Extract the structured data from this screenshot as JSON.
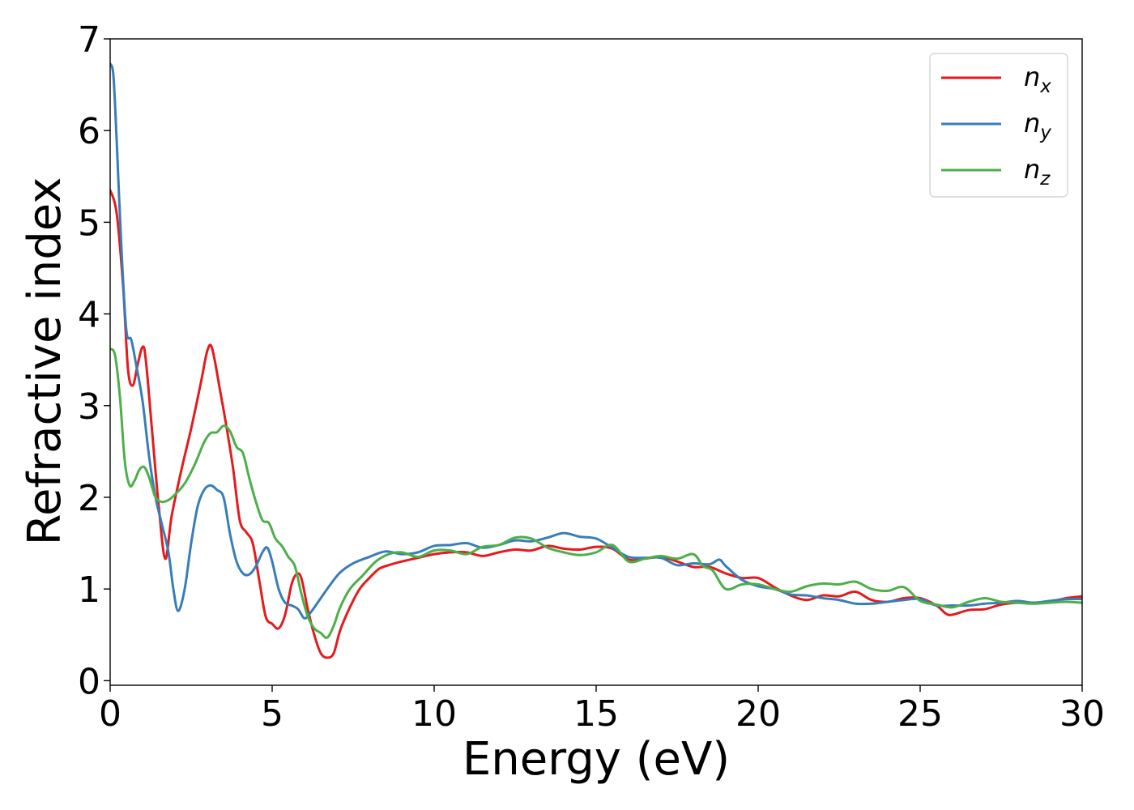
{
  "chart_data": {
    "type": "line",
    "xlabel": "Energy (eV)",
    "ylabel": "Refractive index",
    "xlim": [
      0,
      30
    ],
    "ylim": [
      -0.05,
      7.0
    ],
    "xticks": [
      0,
      5,
      10,
      15,
      20,
      25,
      30
    ],
    "yticks": [
      0,
      1,
      2,
      3,
      4,
      5,
      6,
      7
    ],
    "xtick_labels": [
      "0",
      "5",
      "10",
      "15",
      "20",
      "25",
      "30"
    ],
    "ytick_labels": [
      "0",
      "1",
      "2",
      "3",
      "4",
      "5",
      "6",
      "7"
    ],
    "grid": false,
    "legend_position": "top-right",
    "series": [
      {
        "name": "n_x",
        "label_base": "n",
        "label_sub": "x",
        "color": "#e41a1c",
        "points": [
          [
            0,
            5.35
          ],
          [
            0.2,
            5.1
          ],
          [
            0.4,
            4.3
          ],
          [
            0.55,
            3.4
          ],
          [
            0.7,
            3.22
          ],
          [
            0.85,
            3.45
          ],
          [
            1.0,
            3.64
          ],
          [
            1.1,
            3.5
          ],
          [
            1.3,
            2.7
          ],
          [
            1.5,
            1.9
          ],
          [
            1.7,
            1.33
          ],
          [
            1.9,
            1.8
          ],
          [
            2.2,
            2.3
          ],
          [
            2.5,
            2.75
          ],
          [
            2.8,
            3.25
          ],
          [
            3.0,
            3.6
          ],
          [
            3.15,
            3.62
          ],
          [
            3.4,
            3.15
          ],
          [
            3.6,
            2.75
          ],
          [
            3.8,
            2.3
          ],
          [
            4.0,
            1.75
          ],
          [
            4.2,
            1.62
          ],
          [
            4.4,
            1.5
          ],
          [
            4.6,
            1.1
          ],
          [
            4.8,
            0.7
          ],
          [
            5.0,
            0.62
          ],
          [
            5.2,
            0.57
          ],
          [
            5.4,
            0.72
          ],
          [
            5.6,
            1.05
          ],
          [
            5.75,
            1.16
          ],
          [
            5.9,
            1.12
          ],
          [
            6.1,
            0.78
          ],
          [
            6.3,
            0.5
          ],
          [
            6.5,
            0.3
          ],
          [
            6.7,
            0.25
          ],
          [
            6.9,
            0.3
          ],
          [
            7.1,
            0.55
          ],
          [
            7.4,
            0.8
          ],
          [
            7.7,
            1.0
          ],
          [
            8.0,
            1.12
          ],
          [
            8.3,
            1.22
          ],
          [
            8.6,
            1.26
          ],
          [
            9.0,
            1.3
          ],
          [
            9.5,
            1.34
          ],
          [
            10.0,
            1.38
          ],
          [
            10.5,
            1.4
          ],
          [
            11.0,
            1.4
          ],
          [
            11.5,
            1.36
          ],
          [
            12.0,
            1.4
          ],
          [
            12.5,
            1.43
          ],
          [
            13.0,
            1.42
          ],
          [
            13.5,
            1.47
          ],
          [
            14.0,
            1.44
          ],
          [
            14.5,
            1.43
          ],
          [
            15.0,
            1.46
          ],
          [
            15.5,
            1.44
          ],
          [
            16.0,
            1.32
          ],
          [
            16.5,
            1.33
          ],
          [
            17.0,
            1.35
          ],
          [
            17.5,
            1.3
          ],
          [
            18.0,
            1.24
          ],
          [
            18.5,
            1.24
          ],
          [
            19.0,
            1.17
          ],
          [
            19.5,
            1.12
          ],
          [
            20.0,
            1.12
          ],
          [
            20.5,
            1.02
          ],
          [
            21.0,
            0.93
          ],
          [
            21.5,
            0.88
          ],
          [
            22.0,
            0.93
          ],
          [
            22.5,
            0.92
          ],
          [
            23.0,
            0.97
          ],
          [
            23.5,
            0.88
          ],
          [
            24.0,
            0.86
          ],
          [
            24.5,
            0.9
          ],
          [
            25.0,
            0.9
          ],
          [
            25.5,
            0.82
          ],
          [
            25.8,
            0.73
          ],
          [
            26.0,
            0.72
          ],
          [
            26.5,
            0.77
          ],
          [
            27.0,
            0.78
          ],
          [
            27.5,
            0.83
          ],
          [
            28.0,
            0.85
          ],
          [
            28.5,
            0.85
          ],
          [
            29.0,
            0.86
          ],
          [
            29.5,
            0.9
          ],
          [
            30.0,
            0.92
          ]
        ]
      },
      {
        "name": "n_y",
        "label_base": "n",
        "label_sub": "y",
        "color": "#377eb8",
        "points": [
          [
            0,
            6.73
          ],
          [
            0.1,
            6.6
          ],
          [
            0.2,
            5.9
          ],
          [
            0.35,
            4.7
          ],
          [
            0.5,
            3.82
          ],
          [
            0.65,
            3.72
          ],
          [
            0.8,
            3.45
          ],
          [
            1.0,
            3.05
          ],
          [
            1.2,
            2.45
          ],
          [
            1.4,
            2.0
          ],
          [
            1.6,
            1.7
          ],
          [
            1.8,
            1.4
          ],
          [
            1.95,
            1.0
          ],
          [
            2.1,
            0.76
          ],
          [
            2.3,
            1.0
          ],
          [
            2.5,
            1.5
          ],
          [
            2.7,
            1.9
          ],
          [
            2.9,
            2.08
          ],
          [
            3.1,
            2.13
          ],
          [
            3.3,
            2.08
          ],
          [
            3.5,
            2.0
          ],
          [
            3.7,
            1.6
          ],
          [
            3.9,
            1.3
          ],
          [
            4.1,
            1.17
          ],
          [
            4.3,
            1.16
          ],
          [
            4.5,
            1.25
          ],
          [
            4.7,
            1.4
          ],
          [
            4.85,
            1.45
          ],
          [
            5.0,
            1.3
          ],
          [
            5.2,
            1.0
          ],
          [
            5.4,
            0.85
          ],
          [
            5.6,
            0.82
          ],
          [
            5.8,
            0.78
          ],
          [
            6.0,
            0.68
          ],
          [
            6.2,
            0.75
          ],
          [
            6.5,
            0.9
          ],
          [
            6.8,
            1.05
          ],
          [
            7.1,
            1.18
          ],
          [
            7.5,
            1.28
          ],
          [
            8.0,
            1.35
          ],
          [
            8.5,
            1.41
          ],
          [
            9.0,
            1.38
          ],
          [
            9.5,
            1.4
          ],
          [
            10.0,
            1.47
          ],
          [
            10.5,
            1.48
          ],
          [
            11.0,
            1.5
          ],
          [
            11.5,
            1.45
          ],
          [
            12.0,
            1.48
          ],
          [
            12.5,
            1.53
          ],
          [
            13.0,
            1.52
          ],
          [
            13.5,
            1.56
          ],
          [
            14.0,
            1.61
          ],
          [
            14.5,
            1.57
          ],
          [
            15.0,
            1.55
          ],
          [
            15.5,
            1.45
          ],
          [
            16.0,
            1.35
          ],
          [
            16.5,
            1.34
          ],
          [
            17.0,
            1.34
          ],
          [
            17.5,
            1.26
          ],
          [
            18.0,
            1.28
          ],
          [
            18.5,
            1.27
          ],
          [
            18.8,
            1.32
          ],
          [
            19.0,
            1.25
          ],
          [
            19.5,
            1.1
          ],
          [
            20.0,
            1.03
          ],
          [
            20.5,
            1.0
          ],
          [
            21.0,
            0.94
          ],
          [
            21.5,
            0.93
          ],
          [
            22.0,
            0.9
          ],
          [
            22.5,
            0.88
          ],
          [
            23.0,
            0.84
          ],
          [
            23.5,
            0.84
          ],
          [
            24.0,
            0.86
          ],
          [
            24.5,
            0.88
          ],
          [
            25.0,
            0.89
          ],
          [
            25.5,
            0.82
          ],
          [
            26.0,
            0.82
          ],
          [
            26.5,
            0.82
          ],
          [
            27.0,
            0.84
          ],
          [
            27.5,
            0.85
          ],
          [
            28.0,
            0.87
          ],
          [
            28.5,
            0.85
          ],
          [
            29.0,
            0.87
          ],
          [
            29.5,
            0.89
          ],
          [
            30.0,
            0.89
          ]
        ]
      },
      {
        "name": "n_z",
        "label_base": "n",
        "label_sub": "z",
        "color": "#4daf4a",
        "points": [
          [
            0,
            3.62
          ],
          [
            0.15,
            3.55
          ],
          [
            0.3,
            3.1
          ],
          [
            0.45,
            2.4
          ],
          [
            0.6,
            2.13
          ],
          [
            0.75,
            2.18
          ],
          [
            0.9,
            2.3
          ],
          [
            1.05,
            2.33
          ],
          [
            1.2,
            2.22
          ],
          [
            1.4,
            2.0
          ],
          [
            1.6,
            1.95
          ],
          [
            1.8,
            1.97
          ],
          [
            2.0,
            2.03
          ],
          [
            2.3,
            2.15
          ],
          [
            2.6,
            2.35
          ],
          [
            2.9,
            2.6
          ],
          [
            3.1,
            2.7
          ],
          [
            3.3,
            2.71
          ],
          [
            3.5,
            2.78
          ],
          [
            3.7,
            2.72
          ],
          [
            3.9,
            2.55
          ],
          [
            4.1,
            2.48
          ],
          [
            4.3,
            2.2
          ],
          [
            4.5,
            1.95
          ],
          [
            4.7,
            1.75
          ],
          [
            4.9,
            1.72
          ],
          [
            5.1,
            1.55
          ],
          [
            5.3,
            1.47
          ],
          [
            5.5,
            1.35
          ],
          [
            5.7,
            1.25
          ],
          [
            5.9,
            0.95
          ],
          [
            6.1,
            0.7
          ],
          [
            6.3,
            0.57
          ],
          [
            6.5,
            0.52
          ],
          [
            6.7,
            0.47
          ],
          [
            6.9,
            0.6
          ],
          [
            7.1,
            0.8
          ],
          [
            7.4,
            1.0
          ],
          [
            7.8,
            1.15
          ],
          [
            8.2,
            1.3
          ],
          [
            8.6,
            1.38
          ],
          [
            9.0,
            1.4
          ],
          [
            9.5,
            1.35
          ],
          [
            10.0,
            1.42
          ],
          [
            10.5,
            1.42
          ],
          [
            11.0,
            1.38
          ],
          [
            11.5,
            1.46
          ],
          [
            12.0,
            1.48
          ],
          [
            12.5,
            1.56
          ],
          [
            13.0,
            1.55
          ],
          [
            13.5,
            1.45
          ],
          [
            14.0,
            1.4
          ],
          [
            14.5,
            1.37
          ],
          [
            15.0,
            1.4
          ],
          [
            15.5,
            1.48
          ],
          [
            16.0,
            1.3
          ],
          [
            16.5,
            1.33
          ],
          [
            17.0,
            1.36
          ],
          [
            17.5,
            1.33
          ],
          [
            18.0,
            1.38
          ],
          [
            18.3,
            1.25
          ],
          [
            18.6,
            1.2
          ],
          [
            19.0,
            1.0
          ],
          [
            19.5,
            1.05
          ],
          [
            20.0,
            1.05
          ],
          [
            20.5,
            1.0
          ],
          [
            21.0,
            0.97
          ],
          [
            21.5,
            1.03
          ],
          [
            22.0,
            1.06
          ],
          [
            22.5,
            1.05
          ],
          [
            23.0,
            1.08
          ],
          [
            23.5,
            1.0
          ],
          [
            24.0,
            0.98
          ],
          [
            24.5,
            1.02
          ],
          [
            25.0,
            0.87
          ],
          [
            25.5,
            0.83
          ],
          [
            26.0,
            0.8
          ],
          [
            26.5,
            0.86
          ],
          [
            27.0,
            0.9
          ],
          [
            27.5,
            0.86
          ],
          [
            28.0,
            0.85
          ],
          [
            28.5,
            0.84
          ],
          [
            29.0,
            0.85
          ],
          [
            29.5,
            0.86
          ],
          [
            30.0,
            0.85
          ]
        ]
      }
    ]
  }
}
